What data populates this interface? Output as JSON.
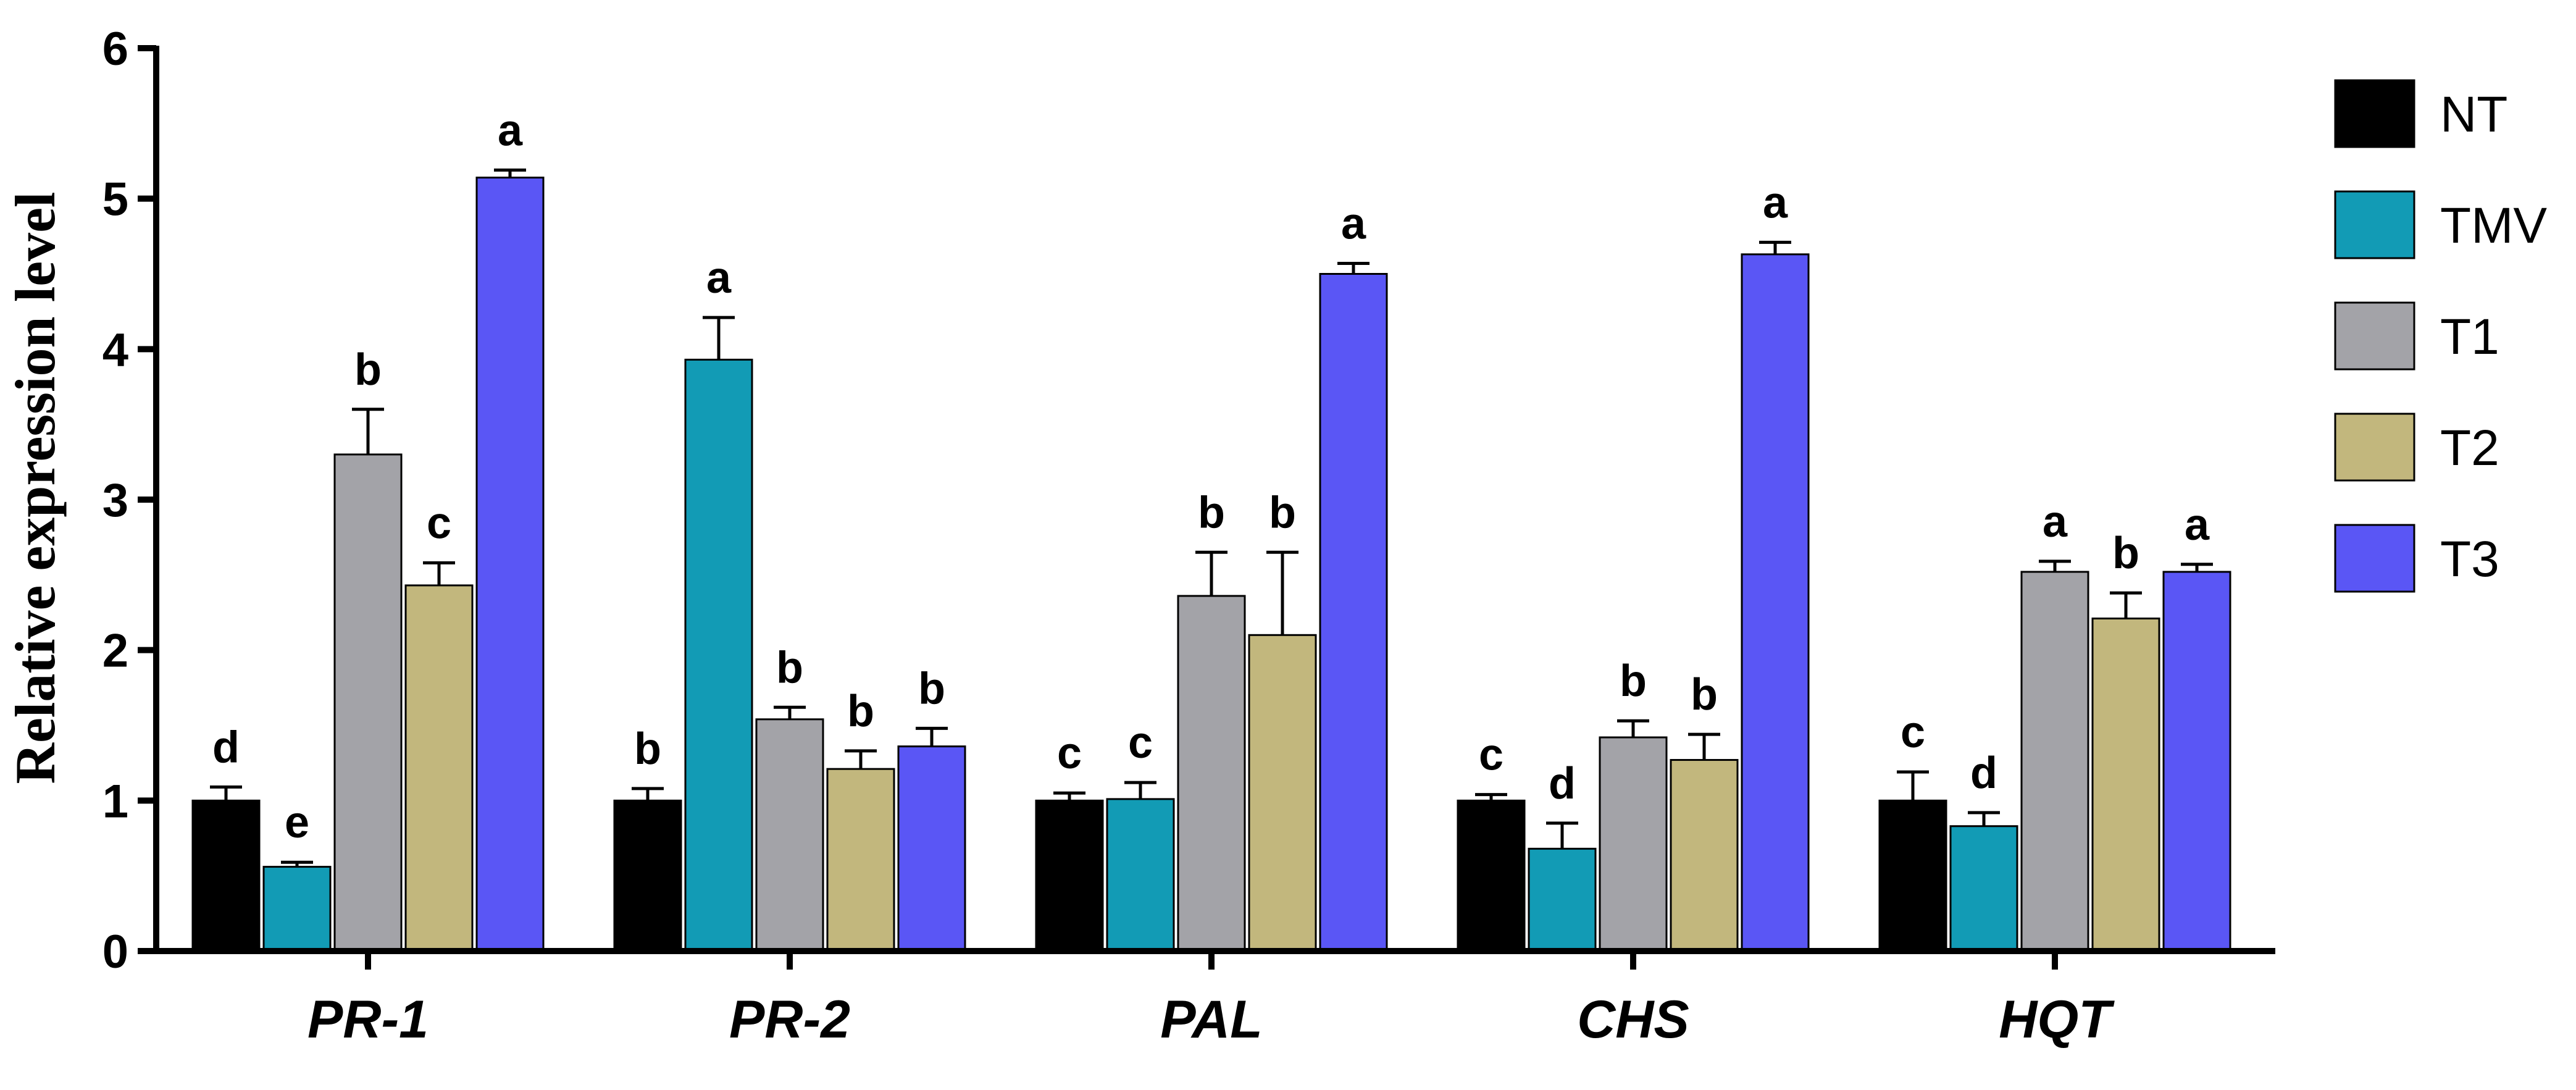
{
  "chart_data": {
    "type": "bar",
    "title": "",
    "xlabel": "",
    "ylabel": "Relative expression level",
    "ylim": [
      0,
      6
    ],
    "yticks": [
      "0",
      "1",
      "2",
      "3",
      "4",
      "5",
      "6"
    ],
    "categories": [
      "PR-1",
      "PR-2",
      "PAL",
      "CHS",
      "HQT"
    ],
    "legend_position": "right",
    "series": [
      {
        "name": "NT",
        "color": "#000000",
        "values": [
          1.0,
          1.0,
          1.0,
          1.0,
          1.0
        ],
        "errors": [
          0.09,
          0.08,
          0.05,
          0.04,
          0.19
        ],
        "letters": [
          "d",
          "b",
          "c",
          "c",
          "c"
        ]
      },
      {
        "name": "TMV",
        "color": "#129bb5",
        "values": [
          0.56,
          3.93,
          1.01,
          0.68,
          0.83
        ],
        "errors": [
          0.03,
          0.28,
          0.11,
          0.17,
          0.09
        ],
        "letters": [
          "e",
          "a",
          "c",
          "d",
          "d"
        ]
      },
      {
        "name": "T1",
        "color": "#a3a3a8",
        "values": [
          3.3,
          1.54,
          2.36,
          1.42,
          2.52
        ],
        "errors": [
          0.3,
          0.08,
          0.29,
          0.11,
          0.07
        ],
        "letters": [
          "b",
          "b",
          "b",
          "b",
          "a"
        ]
      },
      {
        "name": "T2",
        "color": "#c2b77d",
        "values": [
          2.43,
          1.21,
          2.1,
          1.27,
          2.21
        ],
        "errors": [
          0.15,
          0.12,
          0.55,
          0.17,
          0.17
        ],
        "letters": [
          "c",
          "b",
          "b",
          "b",
          "b"
        ]
      },
      {
        "name": "T3",
        "color": "#5a56f5",
        "values": [
          5.14,
          1.36,
          4.5,
          4.63,
          2.52
        ],
        "errors": [
          0.05,
          0.12,
          0.07,
          0.08,
          0.05
        ],
        "letters": [
          "a",
          "b",
          "a",
          "a",
          "a"
        ]
      }
    ]
  }
}
